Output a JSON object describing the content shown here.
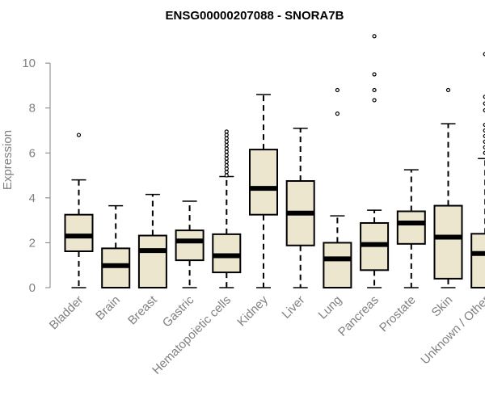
{
  "chart_data": {
    "type": "box",
    "title": "ENSG00000207088 - SNORA7B",
    "xlabel": "",
    "ylabel": "Expression",
    "ylim": [
      0,
      11.3
    ],
    "yticks": [
      0,
      2,
      4,
      6,
      8,
      10
    ],
    "categories": [
      "Bladder",
      "Brain",
      "Breast",
      "Gastric",
      "Hematopoietic cells",
      "Kidney",
      "Liver",
      "Lung",
      "Pancreas",
      "Prostate",
      "Skin",
      "Unknown / Other"
    ],
    "boxes": [
      {
        "name": "Bladder",
        "whisker_low": 0.0,
        "q1": 1.62,
        "median": 2.3,
        "q3": 3.25,
        "whisker_high": 4.8,
        "outliers": [
          6.8
        ]
      },
      {
        "name": "Brain",
        "whisker_low": 0.0,
        "q1": 0.0,
        "median": 0.98,
        "q3": 1.75,
        "whisker_high": 3.65,
        "outliers": []
      },
      {
        "name": "Breast",
        "whisker_low": 0.0,
        "q1": 0.0,
        "median": 1.65,
        "q3": 2.32,
        "whisker_high": 4.15,
        "outliers": []
      },
      {
        "name": "Gastric",
        "whisker_low": 0.0,
        "q1": 1.22,
        "median": 2.08,
        "q3": 2.55,
        "whisker_high": 3.85,
        "outliers": []
      },
      {
        "name": "Hematopoietic cells",
        "whisker_low": 0.0,
        "q1": 0.68,
        "median": 1.42,
        "q3": 2.38,
        "whisker_high": 4.95,
        "outliers": [
          5.0,
          5.15,
          5.3,
          5.45,
          5.6,
          5.75,
          5.9,
          6.05,
          6.2,
          6.35,
          6.5,
          6.65,
          6.8,
          6.95
        ]
      },
      {
        "name": "Kidney",
        "whisker_low": 0.0,
        "q1": 3.25,
        "median": 4.42,
        "q3": 6.15,
        "whisker_high": 8.6,
        "outliers": []
      },
      {
        "name": "Liver",
        "whisker_low": 0.0,
        "q1": 1.88,
        "median": 3.32,
        "q3": 4.75,
        "whisker_high": 7.1,
        "outliers": []
      },
      {
        "name": "Lung",
        "whisker_low": 0.0,
        "q1": 0.0,
        "median": 1.28,
        "q3": 2.0,
        "whisker_high": 3.2,
        "outliers": [
          7.75,
          8.8
        ]
      },
      {
        "name": "Pancreas",
        "whisker_low": 0.0,
        "q1": 0.78,
        "median": 1.92,
        "q3": 2.88,
        "whisker_high": 3.45,
        "outliers": [
          8.35,
          8.8,
          9.5,
          11.2
        ]
      },
      {
        "name": "Prostate",
        "whisker_low": 0.0,
        "q1": 1.95,
        "median": 2.88,
        "q3": 3.4,
        "whisker_high": 5.25,
        "outliers": []
      },
      {
        "name": "Skin",
        "whisker_low": 0.0,
        "q1": 0.4,
        "median": 2.25,
        "q3": 3.65,
        "whisker_high": 7.3,
        "outliers": [
          8.8
        ]
      },
      {
        "name": "Unknown / Other",
        "whisker_low": 0.0,
        "q1": 0.0,
        "median": 1.52,
        "q3": 2.4,
        "whisker_high": 5.75,
        "outliers": [
          6.0,
          6.25,
          6.5,
          6.75,
          7.0,
          7.25,
          7.9,
          8.2,
          8.5,
          10.4
        ]
      }
    ],
    "colors": {
      "box_fill": "#ede6cf",
      "stroke": "#000000",
      "text": "#808080",
      "title": "#000000"
    }
  }
}
